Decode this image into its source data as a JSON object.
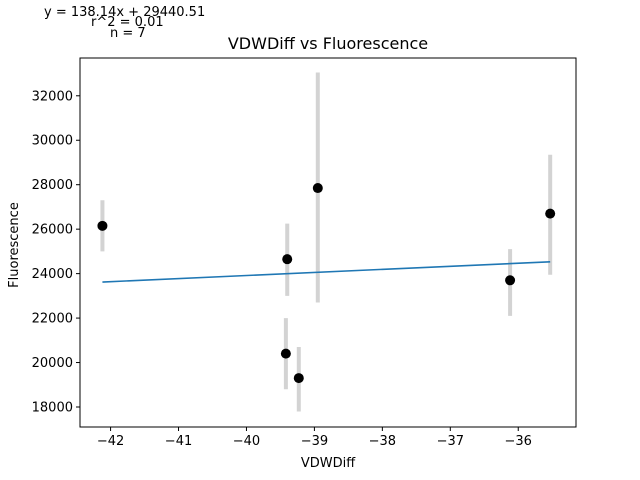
{
  "chart_data": {
    "type": "scatter",
    "title": "VDWDiff vs Fluorescence",
    "xlabel": "VDWDiff",
    "ylabel": "Fluorescence",
    "xlim": [
      -42.45,
      -35.15
    ],
    "ylim": [
      17100,
      33700
    ],
    "xticks": [
      -42,
      -41,
      -40,
      -39,
      -38,
      -37,
      -36
    ],
    "xtick_labels": [
      "−42",
      "−41",
      "−40",
      "−39",
      "−38",
      "−37",
      "−36"
    ],
    "yticks": [
      18000,
      20000,
      22000,
      24000,
      26000,
      28000,
      30000,
      32000
    ],
    "ytick_labels": [
      "18000",
      "20000",
      "22000",
      "24000",
      "26000",
      "28000",
      "30000",
      "32000"
    ],
    "grid": false,
    "points": [
      {
        "x": -42.12,
        "y": 26150,
        "err_low": 25000,
        "err_high": 27300
      },
      {
        "x": -39.42,
        "y": 20400,
        "err_low": 18800,
        "err_high": 22000
      },
      {
        "x": -39.4,
        "y": 24650,
        "err_low": 23000,
        "err_high": 26250
      },
      {
        "x": -39.23,
        "y": 19300,
        "err_low": 17800,
        "err_high": 20700
      },
      {
        "x": -38.95,
        "y": 27850,
        "err_low": 22700,
        "err_high": 33050
      },
      {
        "x": -36.12,
        "y": 23700,
        "err_low": 22100,
        "err_high": 25100
      },
      {
        "x": -35.53,
        "y": 26700,
        "err_low": 23950,
        "err_high": 29350
      }
    ],
    "fit_line": {
      "slope": 138.14,
      "intercept": 29440.51,
      "x_start": -42.12,
      "x_end": -35.53
    },
    "colors": {
      "point": "#000000",
      "errorbar": "#d3d3d3",
      "fit": "#1f77b4"
    }
  },
  "annotations": {
    "equation": "y = 138.14x + 29440.51",
    "r2": "r^2 = 0.01",
    "n": "n = 7"
  }
}
